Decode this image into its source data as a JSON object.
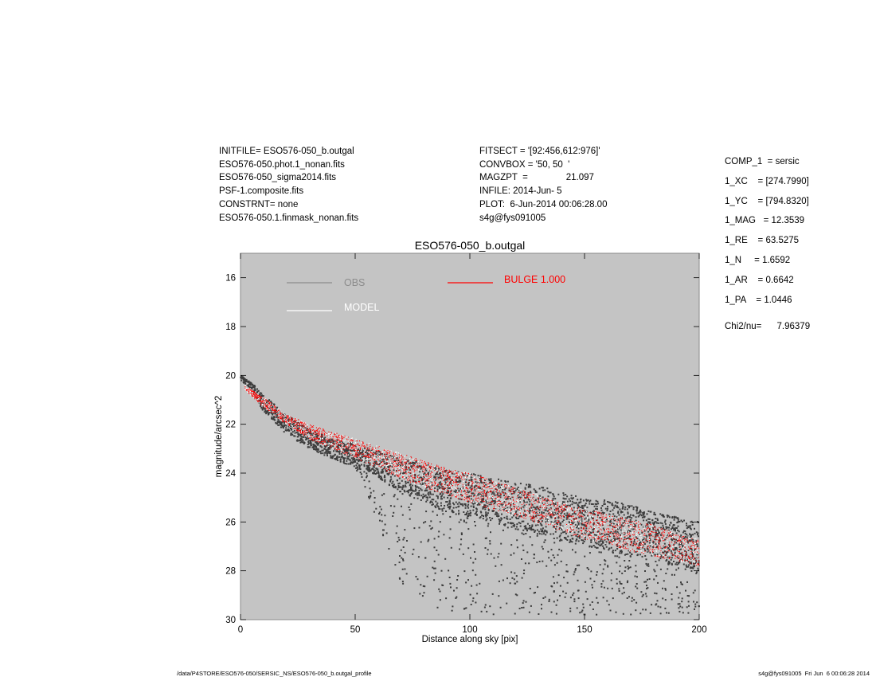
{
  "header": {
    "left": [
      "INITFILE= ESO576-050_b.outgal",
      "ESO576-050.phot.1_nonan.fits",
      "ESO576-050_sigma2014.fits",
      "PSF-1.composite.fits",
      "CONSTRNT= none",
      "ESO576-050.1.finmask_nonan.fits"
    ],
    "middle": [
      "FITSECT = '[92:456,612:976]'",
      "CONVBOX = '50, 50  '",
      "MAGZPT  =               21.097",
      "INFILE: 2014-Jun- 5",
      "PLOT:  6-Jun-2014 00:06:28.00",
      "s4g@fys091005"
    ]
  },
  "params": [
    "COMP_1  = sersic",
    "1_XC    = [274.7990]",
    "1_YC    = [794.8320]",
    "1_MAG   = 12.3539",
    "1_RE    = 63.5275",
    "1_N     = 1.6592",
    "1_AR    = 0.6642",
    "1_PA    = 1.0446"
  ],
  "chi2": "Chi2/nu=      7.96379",
  "footer": {
    "left": "/data/P4STORE/ESO576-050/SERSIC_NS/ESO576-050_b.outgal_profile",
    "right": "s4g@fys091005  Fri Jun  6 00:06:28 2014"
  },
  "colors": {
    "plot_bg": "#c4c4c4",
    "obs": "#3d3d3d",
    "model": "#ffffff",
    "bulge": "#ff0000",
    "legend_obs": "#8c8c8c"
  },
  "chart_data": {
    "type": "scatter",
    "title": "ESO576-050_b.outgal",
    "xlabel": "Distance along sky [pix]",
    "ylabel": "magnitude/arcsec^2",
    "xlim": [
      0,
      200
    ],
    "ylim": [
      30,
      15
    ],
    "y_inverted": true,
    "xticks": [
      0,
      50,
      100,
      150,
      200
    ],
    "yticks": [
      16,
      18,
      20,
      22,
      24,
      26,
      28,
      30
    ],
    "legend": [
      {
        "label": "OBS",
        "color": "#8c8c8c"
      },
      {
        "label": "MODEL",
        "color": "#ffffff"
      },
      {
        "label": "BULGE  1.000",
        "color": "#ff0000"
      }
    ],
    "series": [
      {
        "name": "OBS",
        "color": "#3d3d3d",
        "x": [
          0,
          5,
          10,
          20,
          30,
          40,
          50,
          60,
          70,
          80,
          90,
          100,
          110,
          120,
          130,
          140,
          150,
          160,
          170,
          180,
          190,
          200
        ],
        "y_lo": [
          20.0,
          20.3,
          20.8,
          21.6,
          22.2,
          22.6,
          22.8,
          23.1,
          23.4,
          23.6,
          23.9,
          24.0,
          24.2,
          24.4,
          24.5,
          24.8,
          25.0,
          25.1,
          25.3,
          25.6,
          25.8,
          26.0
        ],
        "y_hi": [
          20.1,
          20.6,
          21.4,
          22.2,
          22.8,
          23.2,
          23.6,
          24.2,
          24.8,
          25.2,
          25.6,
          25.8,
          26.0,
          26.3,
          26.5,
          26.8,
          27.0,
          27.2,
          27.4,
          27.6,
          27.8,
          28.0
        ],
        "sparse_y_max": [
          20.2,
          20.6,
          21.5,
          22.4,
          23.0,
          23.4,
          23.8,
          26.0,
          28.5,
          29.5,
          29.8,
          29.8,
          29.8,
          29.8,
          29.8,
          29.8,
          29.8,
          29.8,
          29.8,
          29.8,
          29.8,
          29.8
        ]
      },
      {
        "name": "MODEL",
        "color": "#ffffff",
        "x": [
          2,
          10,
          20,
          30,
          40,
          50,
          60,
          70,
          80,
          90,
          100,
          110,
          120,
          130,
          140,
          150,
          160,
          170,
          180,
          190,
          200
        ],
        "y_lo": [
          20.4,
          20.9,
          21.6,
          22.0,
          22.3,
          22.6,
          22.9,
          23.2,
          23.5,
          23.8,
          24.0,
          24.3,
          24.6,
          24.9,
          25.2,
          25.4,
          25.7,
          25.9,
          26.1,
          26.5,
          26.7
        ],
        "y_hi": [
          20.6,
          21.3,
          22.0,
          22.6,
          23.0,
          23.4,
          23.8,
          24.2,
          24.6,
          24.9,
          25.2,
          25.5,
          25.8,
          26.1,
          26.4,
          26.7,
          26.9,
          27.2,
          27.4,
          27.6,
          27.8
        ]
      },
      {
        "name": "BULGE  1.000",
        "color": "#ff0000",
        "x": [
          2,
          10,
          20,
          30,
          40,
          50,
          60,
          70,
          80,
          90,
          100,
          110,
          120,
          130,
          140,
          150,
          160,
          170,
          180,
          190,
          200
        ],
        "y_lo": [
          20.4,
          20.9,
          21.6,
          22.0,
          22.3,
          22.6,
          22.9,
          23.2,
          23.5,
          23.8,
          24.0,
          24.3,
          24.6,
          24.9,
          25.2,
          25.4,
          25.7,
          25.9,
          26.1,
          26.5,
          26.7
        ],
        "y_hi": [
          20.6,
          21.3,
          22.0,
          22.6,
          23.0,
          23.4,
          23.8,
          24.2,
          24.6,
          24.9,
          25.2,
          25.5,
          25.8,
          26.1,
          26.4,
          26.7,
          26.9,
          27.2,
          27.4,
          27.6,
          27.8
        ]
      }
    ]
  }
}
